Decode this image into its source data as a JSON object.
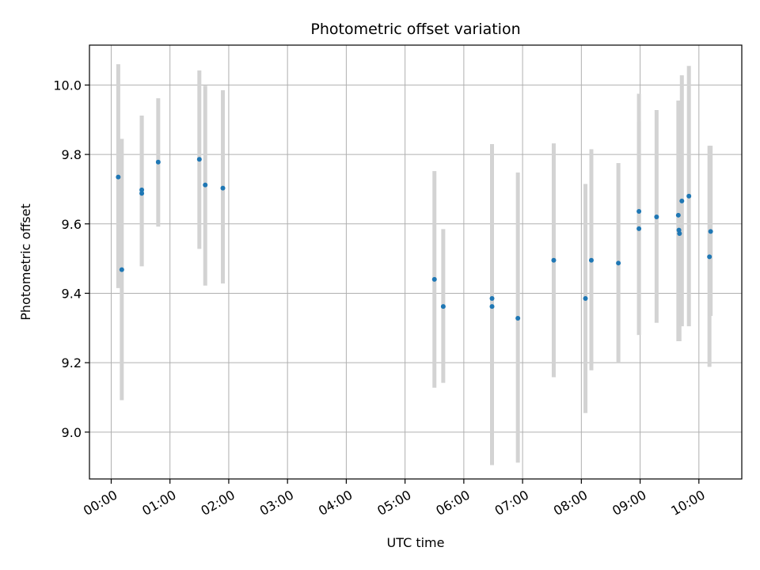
{
  "chart_data": {
    "type": "scatter",
    "title": "Photometric offset variation",
    "xlabel": "UTC time",
    "ylabel": "Photometric offset",
    "x_unit": "hour",
    "xlim": [
      -0.37,
      10.73
    ],
    "ylim": [
      8.865,
      10.115
    ],
    "x_ticks": [
      {
        "value": 0,
        "label": "00:00"
      },
      {
        "value": 1,
        "label": "01:00"
      },
      {
        "value": 2,
        "label": "02:00"
      },
      {
        "value": 3,
        "label": "03:00"
      },
      {
        "value": 4,
        "label": "04:00"
      },
      {
        "value": 5,
        "label": "05:00"
      },
      {
        "value": 6,
        "label": "06:00"
      },
      {
        "value": 7,
        "label": "07:00"
      },
      {
        "value": 8,
        "label": "08:00"
      },
      {
        "value": 9,
        "label": "09:00"
      },
      {
        "value": 10,
        "label": "10:00"
      }
    ],
    "y_ticks": [
      {
        "value": 9.0,
        "label": "9.0"
      },
      {
        "value": 9.2,
        "label": "9.2"
      },
      {
        "value": 9.4,
        "label": "9.4"
      },
      {
        "value": 9.6,
        "label": "9.6"
      },
      {
        "value": 9.8,
        "label": "9.8"
      },
      {
        "value": 10.0,
        "label": "10.0"
      }
    ],
    "grid": true,
    "colors": {
      "point": "#1f77b4",
      "errorbar": "#d3d3d3",
      "grid": "#b0b0b0"
    },
    "points": [
      {
        "x": 0.12,
        "y": 9.735,
        "err_low": 9.415,
        "err_high": 10.06
      },
      {
        "x": 0.18,
        "y": 9.468,
        "err_low": 9.092,
        "err_high": 9.845
      },
      {
        "x": 0.52,
        "y": 9.698,
        "err_low": 9.478,
        "err_high": 9.912
      },
      {
        "x": 0.52,
        "y": 9.688,
        "err_low": 9.478,
        "err_high": 9.912
      },
      {
        "x": 0.8,
        "y": 9.778,
        "err_low": 9.592,
        "err_high": 9.962
      },
      {
        "x": 1.5,
        "y": 9.786,
        "err_low": 9.528,
        "err_high": 10.042
      },
      {
        "x": 1.6,
        "y": 9.712,
        "err_low": 9.422,
        "err_high": 9.998
      },
      {
        "x": 1.9,
        "y": 9.703,
        "err_low": 9.428,
        "err_high": 9.985
      },
      {
        "x": 5.5,
        "y": 9.44,
        "err_low": 9.128,
        "err_high": 9.752
      },
      {
        "x": 5.65,
        "y": 9.362,
        "err_low": 9.142,
        "err_high": 9.585
      },
      {
        "x": 6.48,
        "y": 9.385,
        "err_low": 8.905,
        "err_high": 9.83
      },
      {
        "x": 6.48,
        "y": 9.362,
        "err_low": 8.905,
        "err_high": 9.83
      },
      {
        "x": 6.92,
        "y": 9.328,
        "err_low": 8.912,
        "err_high": 9.748
      },
      {
        "x": 7.53,
        "y": 9.495,
        "err_low": 9.158,
        "err_high": 9.832
      },
      {
        "x": 8.07,
        "y": 9.385,
        "err_low": 9.055,
        "err_high": 9.715
      },
      {
        "x": 8.17,
        "y": 9.495,
        "err_low": 9.178,
        "err_high": 9.815
      },
      {
        "x": 8.63,
        "y": 9.487,
        "err_low": 9.198,
        "err_high": 9.775
      },
      {
        "x": 8.98,
        "y": 9.636,
        "err_low": 9.28,
        "err_high": 9.975
      },
      {
        "x": 8.98,
        "y": 9.586,
        "err_low": 9.28,
        "err_high": 9.895
      },
      {
        "x": 9.28,
        "y": 9.62,
        "err_low": 9.315,
        "err_high": 9.928
      },
      {
        "x": 9.65,
        "y": 9.625,
        "err_low": 9.262,
        "err_high": 9.955
      },
      {
        "x": 9.66,
        "y": 9.582,
        "err_low": 9.262,
        "err_high": 9.955
      },
      {
        "x": 9.67,
        "y": 9.572,
        "err_low": 9.262,
        "err_high": 9.955
      },
      {
        "x": 9.71,
        "y": 9.666,
        "err_low": 9.305,
        "err_high": 10.028
      },
      {
        "x": 9.83,
        "y": 9.68,
        "err_low": 9.305,
        "err_high": 10.055
      },
      {
        "x": 10.18,
        "y": 9.505,
        "err_low": 9.188,
        "err_high": 9.825
      },
      {
        "x": 10.2,
        "y": 9.578,
        "err_low": 9.335,
        "err_high": 9.825
      }
    ]
  }
}
